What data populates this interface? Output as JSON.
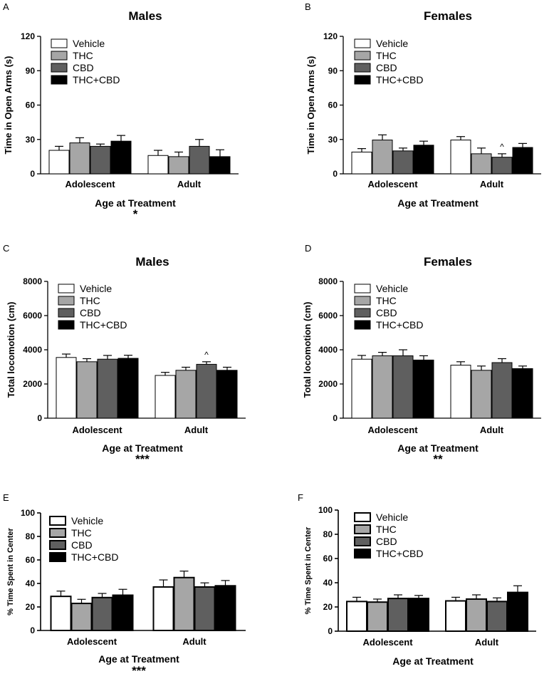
{
  "series_meta": [
    {
      "name": "Vehicle",
      "color": "#ffffff"
    },
    {
      "name": "THC",
      "color": "#a6a6a6"
    },
    {
      "name": "CBD",
      "color": "#5f5f5f"
    },
    {
      "name": "THC+CBD",
      "color": "#000000"
    }
  ],
  "chart_data": [
    {
      "panel": "A",
      "type": "bar",
      "title": "Males",
      "ylabel": "Time in Open Arms (s)",
      "xlabel": "Age at Treatment",
      "ylim": [
        0,
        120
      ],
      "yticks": [
        "0",
        "30",
        "60",
        "90",
        "120"
      ],
      "categories": [
        "Adolescent",
        "Adult"
      ],
      "series": [
        {
          "name": "Vehicle",
          "values": [
            20.5,
            16
          ],
          "errors": [
            3.5,
            4.5
          ]
        },
        {
          "name": "THC",
          "values": [
            27,
            15
          ],
          "errors": [
            4.5,
            4
          ]
        },
        {
          "name": "CBD",
          "values": [
            24,
            24
          ],
          "errors": [
            2,
            6
          ]
        },
        {
          "name": "THC+CBD",
          "values": [
            28.5,
            15
          ],
          "errors": [
            5,
            6
          ]
        }
      ],
      "significance": "*",
      "annotations": []
    },
    {
      "panel": "B",
      "type": "bar",
      "title": "Females",
      "ylabel": "Time in Open Arms (s)",
      "xlabel": "Age at Treatment",
      "ylim": [
        0,
        120
      ],
      "yticks": [
        "0",
        "30",
        "60",
        "90",
        "120"
      ],
      "categories": [
        "Adolescent",
        "Adult"
      ],
      "series": [
        {
          "name": "Vehicle",
          "values": [
            19,
            29.5
          ],
          "errors": [
            3,
            3
          ]
        },
        {
          "name": "THC",
          "values": [
            29.5,
            17.5
          ],
          "errors": [
            4.5,
            5
          ]
        },
        {
          "name": "CBD",
          "values": [
            20,
            14.5
          ],
          "errors": [
            2.5,
            3
          ]
        },
        {
          "name": "THC+CBD",
          "values": [
            25,
            23
          ],
          "errors": [
            3.5,
            3.5
          ]
        }
      ],
      "significance": "",
      "annotations": [
        {
          "text": "^",
          "category": 1,
          "series": 2
        }
      ]
    },
    {
      "panel": "C",
      "type": "bar",
      "title": "Males",
      "ylabel": "Total locomotion (cm)",
      "xlabel": "Age at Treatment",
      "ylim": [
        0,
        8000
      ],
      "yticks": [
        "0",
        "2000",
        "4000",
        "6000",
        "8000"
      ],
      "categories": [
        "Adolescent",
        "Adult"
      ],
      "series": [
        {
          "name": "Vehicle",
          "values": [
            3550,
            2500
          ],
          "errors": [
            200,
            180
          ]
        },
        {
          "name": "THC",
          "values": [
            3300,
            2800
          ],
          "errors": [
            180,
            180
          ]
        },
        {
          "name": "CBD",
          "values": [
            3450,
            3150
          ],
          "errors": [
            220,
            150
          ]
        },
        {
          "name": "THC+CBD",
          "values": [
            3500,
            2800
          ],
          "errors": [
            180,
            180
          ]
        }
      ],
      "significance": "***",
      "annotations": [
        {
          "text": "^",
          "category": 1,
          "series": 2
        }
      ]
    },
    {
      "panel": "D",
      "type": "bar",
      "title": "Females",
      "ylabel": "Total locomotion (cm)",
      "xlabel": "Age at Treatment",
      "ylim": [
        0,
        8000
      ],
      "yticks": [
        "0",
        "2000",
        "4000",
        "6000",
        "8000"
      ],
      "categories": [
        "Adolescent",
        "Adult"
      ],
      "series": [
        {
          "name": "Vehicle",
          "values": [
            3450,
            3100
          ],
          "errors": [
            220,
            200
          ]
        },
        {
          "name": "THC",
          "values": [
            3650,
            2800
          ],
          "errors": [
            200,
            250
          ]
        },
        {
          "name": "CBD",
          "values": [
            3650,
            3250
          ],
          "errors": [
            350,
            230
          ]
        },
        {
          "name": "THC+CBD",
          "values": [
            3400,
            2900
          ],
          "errors": [
            250,
            150
          ]
        }
      ],
      "significance": "**",
      "annotations": []
    },
    {
      "panel": "E",
      "type": "bar",
      "title": "",
      "ylabel": "% Time Spent in Center",
      "xlabel": "Age at Treatment",
      "ylim": [
        0,
        100
      ],
      "yticks": [
        "0",
        "20",
        "40",
        "60",
        "80",
        "100"
      ],
      "categories": [
        "Adolescent",
        "Adult"
      ],
      "series": [
        {
          "name": "Vehicle",
          "values": [
            29,
            37
          ],
          "errors": [
            4.5,
            6
          ]
        },
        {
          "name": "THC",
          "values": [
            23,
            45
          ],
          "errors": [
            3.5,
            5.5
          ]
        },
        {
          "name": "CBD",
          "values": [
            28,
            37
          ],
          "errors": [
            3.5,
            3.5
          ]
        },
        {
          "name": "THC+CBD",
          "values": [
            30,
            38
          ],
          "errors": [
            5,
            4.5
          ]
        }
      ],
      "significance": "***",
      "annotations": []
    },
    {
      "panel": "F",
      "type": "bar",
      "title": "",
      "ylabel": "% Time Spent in Center",
      "xlabel": "Age at Treatment",
      "ylim": [
        0,
        100
      ],
      "yticks": [
        "0",
        "20",
        "40",
        "60",
        "80",
        "100"
      ],
      "categories": [
        "Adolescent",
        "Adult"
      ],
      "series": [
        {
          "name": "Vehicle",
          "values": [
            24.5,
            25
          ],
          "errors": [
            3.5,
            3
          ]
        },
        {
          "name": "THC",
          "values": [
            24,
            26.5
          ],
          "errors": [
            2.5,
            3.5
          ]
        },
        {
          "name": "CBD",
          "values": [
            27,
            24.5
          ],
          "errors": [
            3,
            3
          ]
        },
        {
          "name": "THC+CBD",
          "values": [
            27,
            32
          ],
          "errors": [
            2.5,
            5.5
          ]
        }
      ],
      "significance": "",
      "annotations": []
    }
  ]
}
